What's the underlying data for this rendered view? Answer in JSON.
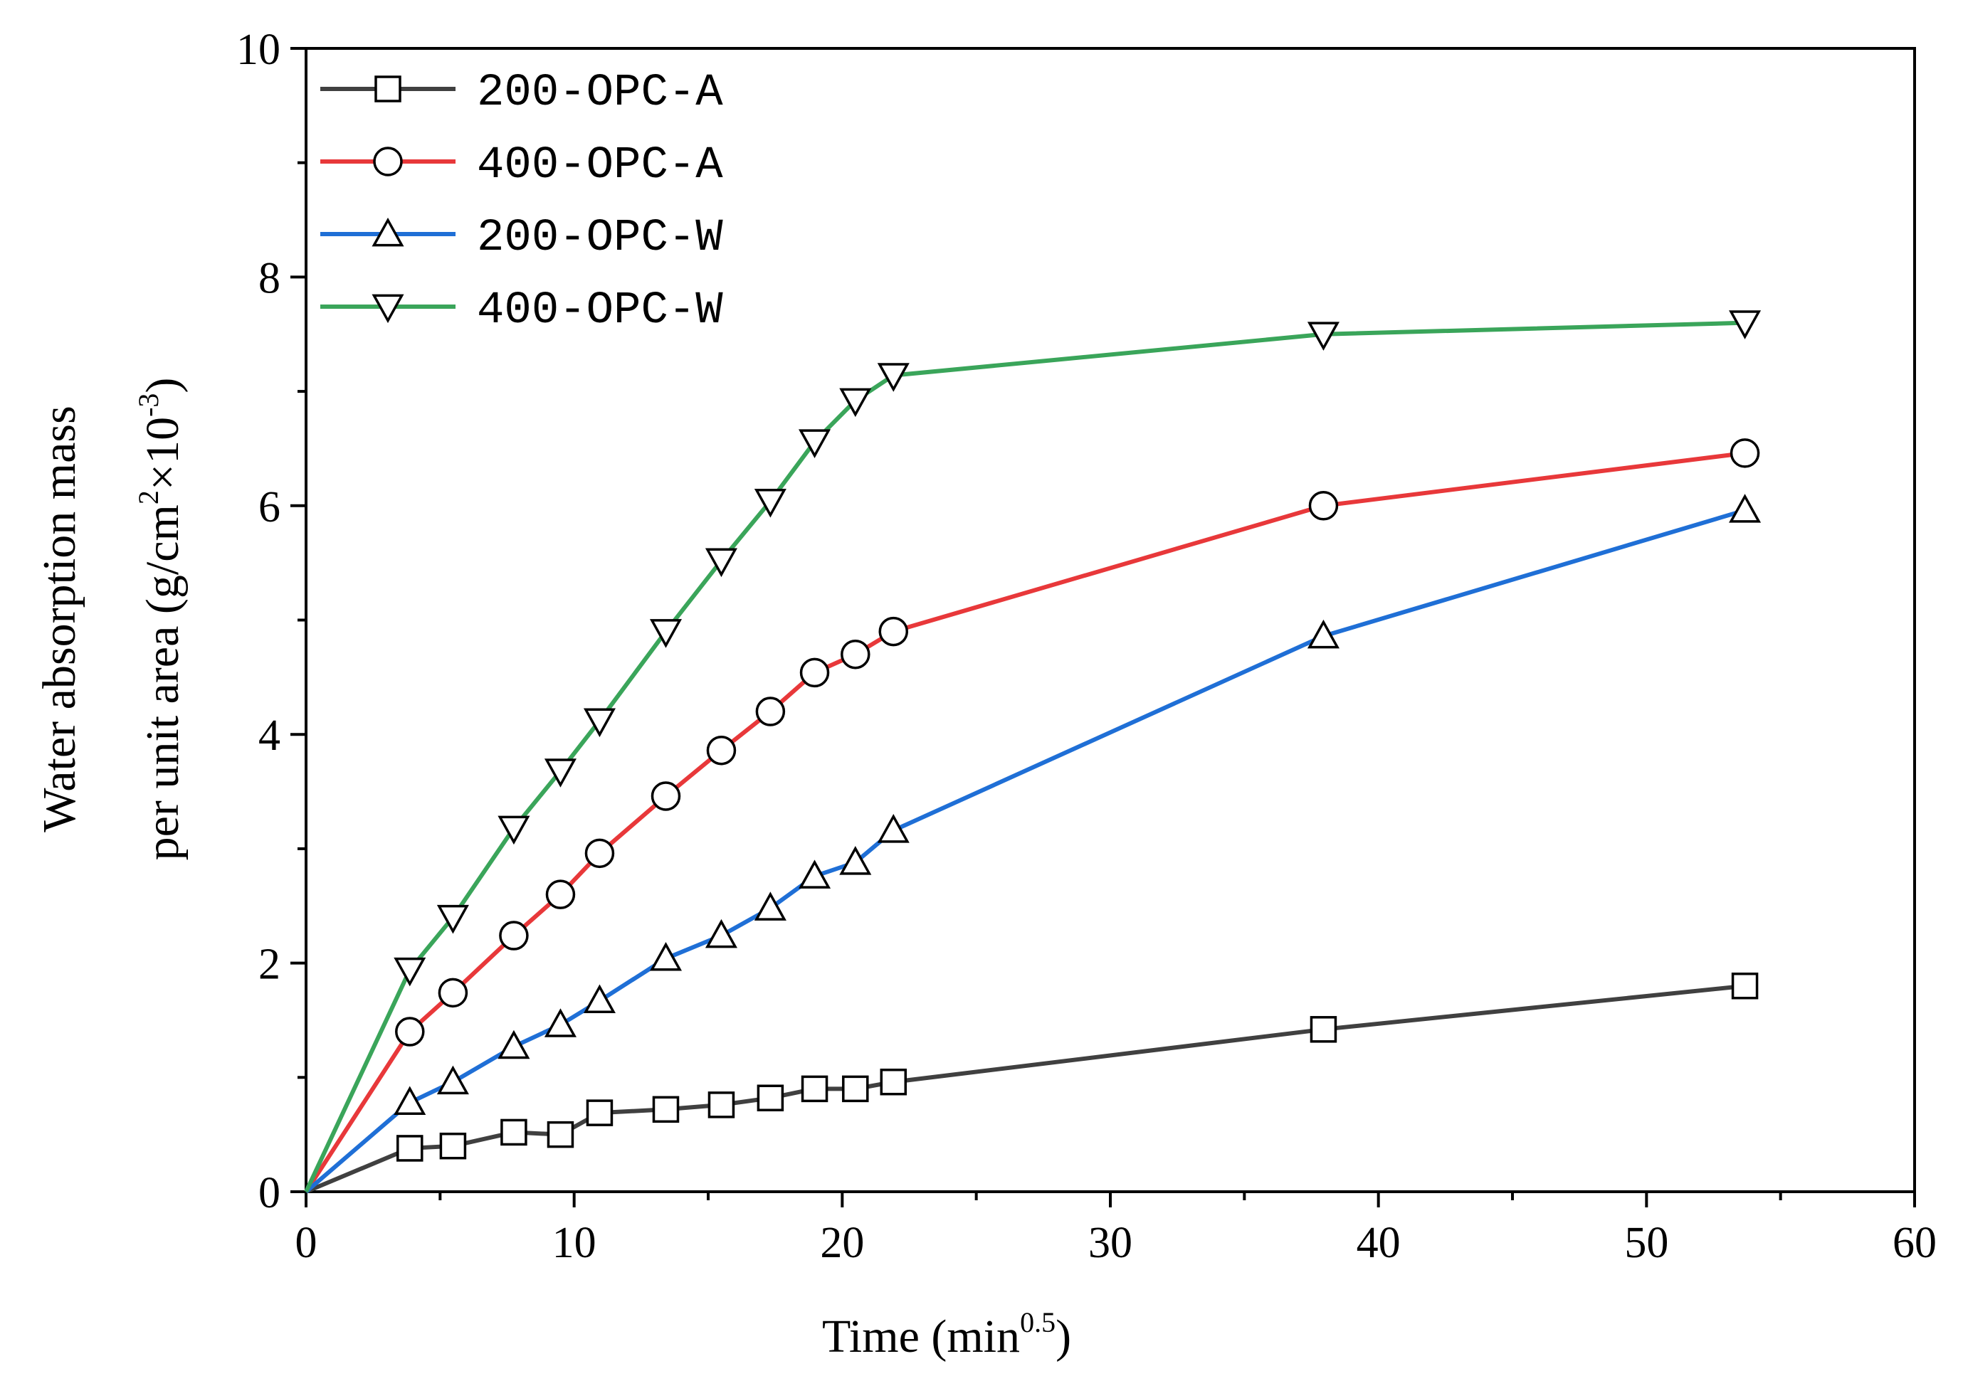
{
  "chart_data": {
    "type": "line",
    "xlabel": "Time (min",
    "xlabel_sup": "0.5",
    "xlabel_end": ")",
    "ylabel_line1": "Water absorption mass",
    "ylabel_line2_a": "per unit area (g/cm",
    "ylabel_line2_sup1": "2",
    "ylabel_line2_b": "×10",
    "ylabel_line2_sup2": "-3",
    "ylabel_line2_end": ")",
    "xlim": [
      0,
      60
    ],
    "ylim": [
      0,
      10
    ],
    "x_ticks": [
      0,
      10,
      20,
      30,
      40,
      50,
      60
    ],
    "y_ticks": [
      0,
      2,
      4,
      6,
      8,
      10
    ],
    "x_minor_step": 5,
    "y_minor_step": 1,
    "legend_position": "top-left",
    "x": [
      0,
      3.87,
      5.48,
      7.75,
      9.49,
      10.95,
      13.42,
      15.49,
      17.32,
      18.97,
      20.49,
      21.91,
      37.95,
      53.67
    ],
    "series": [
      {
        "name": "200-OPC-A",
        "color": "#404040",
        "marker": "square",
        "values": [
          0,
          0.38,
          0.4,
          0.52,
          0.5,
          0.69,
          0.72,
          0.76,
          0.82,
          0.9,
          0.9,
          0.96,
          1.42,
          1.8
        ]
      },
      {
        "name": "400-OPC-A",
        "color": "#e8383a",
        "marker": "circle",
        "values": [
          0,
          1.4,
          1.74,
          2.24,
          2.6,
          2.96,
          3.46,
          3.86,
          4.2,
          4.54,
          4.7,
          4.9,
          6.0,
          6.46
        ]
      },
      {
        "name": "200-OPC-W",
        "color": "#1f6fd6",
        "marker": "triangle-up",
        "values": [
          0,
          0.78,
          0.96,
          1.27,
          1.46,
          1.67,
          2.04,
          2.24,
          2.48,
          2.76,
          2.88,
          3.16,
          4.86,
          5.96
        ]
      },
      {
        "name": "400-OPC-W",
        "color": "#3aa55a",
        "marker": "triangle-down",
        "values": [
          0,
          1.94,
          2.4,
          3.18,
          3.68,
          4.12,
          4.9,
          5.52,
          6.04,
          6.56,
          6.92,
          7.14,
          7.5,
          7.6
        ]
      }
    ]
  }
}
